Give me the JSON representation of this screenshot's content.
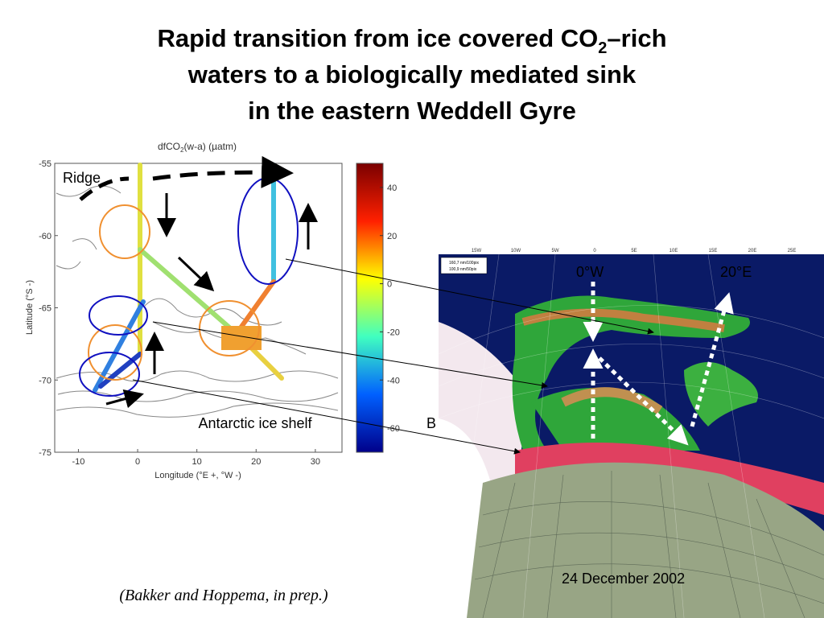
{
  "slide": {
    "title": {
      "line1": [
        "Rapid transition from ice covered CO",
        "2",
        "–rich"
      ],
      "line2": "waters to a biologically mediated sink",
      "line3": "in the eastern Weddell Gyre"
    },
    "plot": {
      "colorbar_label": [
        "dfCO",
        "2",
        "(w-a) (µatm)"
      ],
      "xlabel": "Longitude (°E +, °W -)",
      "ylabel": "Latitude (°S -)",
      "xlim": [
        -14,
        34.5
      ],
      "xticks": [
        -10,
        0,
        10,
        20,
        30
      ],
      "ylim": [
        -55,
        -75
      ],
      "yticks": [
        -55,
        -60,
        -65,
        -70,
        -75
      ],
      "clim": [
        -70,
        50
      ],
      "cticks": [
        40,
        20,
        0,
        -20,
        -40,
        -60
      ]
    },
    "annotations": {
      "ridge": "Ridge",
      "shelf": "Antarctic ice shelf",
      "b": "B",
      "lon0": "0°W",
      "lon20": "20°E",
      "date": "24 December 2002"
    },
    "image_ticks": [
      "15W",
      "10W",
      "5W",
      "0",
      "5E",
      "10E",
      "15E",
      "20E",
      "25E"
    ],
    "image_legend": [
      "160,7 nm/100pix",
      "100,9 nm/50pix"
    ],
    "citation": "(Bakker and Hoppema, in prep.)"
  }
}
